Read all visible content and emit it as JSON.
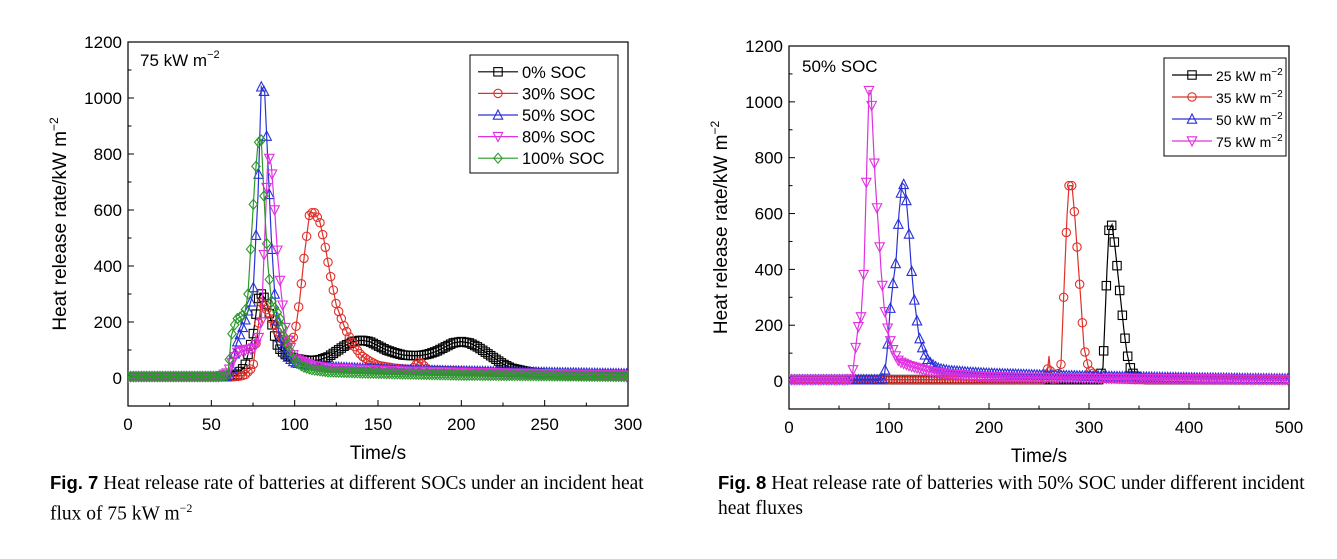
{
  "figures": [
    {
      "chart_data": {
        "type": "line",
        "annotation": "75 kW m",
        "annotation_sup": "−2",
        "xlabel": "Time/s",
        "ylabel": "Heat release rate/kW m",
        "ylabel_sup": "−2",
        "xlim": [
          0,
          300
        ],
        "ylim": [
          -100,
          1200
        ],
        "xticks": [
          0,
          50,
          100,
          150,
          200,
          250,
          300
        ],
        "yticks": [
          0,
          200,
          400,
          600,
          800,
          1000,
          1200
        ],
        "grid": false,
        "legend_position": "top-right",
        "series": [
          {
            "name": "0% SOC",
            "color": "#000000",
            "marker": "square",
            "x": [
              0,
              60,
              65,
              70,
              75,
              78,
              80,
              82,
              84,
              86,
              88,
              90,
              95,
              100,
              105,
              110,
              115,
              120,
              125,
              130,
              135,
              140,
              145,
              150,
              155,
              160,
              165,
              170,
              175,
              180,
              185,
              190,
              195,
              200,
              205,
              210,
              215,
              220,
              225,
              230,
              240,
              250,
              260,
              270,
              280,
              290,
              300
            ],
            "y": [
              5,
              5,
              10,
              40,
              150,
              280,
              300,
              285,
              250,
              200,
              150,
              110,
              80,
              70,
              65,
              62,
              65,
              75,
              95,
              115,
              130,
              135,
              130,
              115,
              100,
              90,
              82,
              80,
              80,
              85,
              95,
              110,
              125,
              130,
              125,
              110,
              90,
              70,
              50,
              35,
              22,
              15,
              12,
              10,
              10,
              10,
              10
            ]
          },
          {
            "name": "30% SOC",
            "color": "#e0302a",
            "marker": "circle",
            "x": [
              0,
              60,
              65,
              70,
              75,
              80,
              85,
              90,
              95,
              100,
              103,
              106,
              109,
              112,
              115,
              118,
              121,
              125,
              130,
              135,
              140,
              145,
              150,
              160,
              170,
              175,
              180,
              200,
              220,
              250,
              300
            ],
            "y": [
              5,
              5,
              5,
              10,
              40,
              270,
              230,
              160,
              120,
              150,
              280,
              450,
              590,
              590,
              560,
              480,
              380,
              260,
              180,
              120,
              80,
              60,
              45,
              35,
              30,
              60,
              28,
              25,
              20,
              15,
              10
            ]
          },
          {
            "name": "50% SOC",
            "color": "#2a30d8",
            "marker": "triangle-up",
            "x": [
              0,
              60,
              62,
              65,
              70,
              75,
              78,
              80,
              82,
              84,
              86,
              88,
              90,
              92,
              95,
              100,
              110,
              120,
              140,
              160,
              200,
              250,
              300
            ],
            "y": [
              5,
              5,
              20,
              120,
              200,
              300,
              650,
              1040,
              1020,
              760,
              500,
              300,
              180,
              120,
              80,
              55,
              45,
              40,
              35,
              30,
              25,
              20,
              15
            ]
          },
          {
            "name": "80% SOC",
            "color": "#e030e0",
            "marker": "triangle-down",
            "x": [
              0,
              55,
              60,
              65,
              70,
              75,
              78,
              80,
              82,
              84,
              86,
              88,
              90,
              92,
              95,
              100,
              110,
              120,
              140,
              160,
              200,
              250,
              300
            ],
            "y": [
              5,
              5,
              20,
              90,
              100,
              105,
              130,
              200,
              500,
              800,
              760,
              600,
              420,
              300,
              150,
              70,
              45,
              35,
              30,
              25,
              20,
              15,
              10
            ]
          },
          {
            "name": "100% SOC",
            "color": "#2a9a2a",
            "marker": "diamond",
            "x": [
              0,
              40,
              50,
              55,
              60,
              62,
              65,
              68,
              70,
              72,
              74,
              76,
              78,
              80,
              82,
              84,
              86,
              88,
              90,
              92,
              95,
              100,
              105,
              110,
              120,
              140,
              160,
              200,
              250,
              300
            ],
            "y": [
              5,
              5,
              5,
              5,
              10,
              150,
              210,
              220,
              230,
              300,
              500,
              700,
              840,
              850,
              600,
              400,
              280,
              250,
              230,
              200,
              130,
              60,
              40,
              30,
              22,
              18,
              15,
              10,
              8,
              5
            ]
          }
        ]
      },
      "caption": {
        "label": "Fig. 7",
        "text": " Heat release rate of batteries at different SOCs under an incident heat flux of 75 kW m",
        "sup": "−2"
      }
    },
    {
      "chart_data": {
        "type": "line",
        "annotation": "50% SOC",
        "xlabel": "Time/s",
        "ylabel": "Heat release rate/kW m",
        "ylabel_sup": "−2",
        "xlim": [
          0,
          500
        ],
        "ylim": [
          -100,
          1200
        ],
        "xticks": [
          0,
          100,
          200,
          300,
          400,
          500
        ],
        "yticks": [
          0,
          200,
          400,
          600,
          800,
          1000,
          1200
        ],
        "grid": false,
        "legend_position": "top-right",
        "series": [
          {
            "name": "25 kW m",
            "sup": "−2",
            "color": "#000000",
            "marker": "square",
            "x": [
              0,
              200,
              250,
              300,
              310,
              314,
              318,
              320,
              323,
              326,
              329,
              332,
              335,
              338,
              341,
              345,
              350,
              360,
              400,
              450,
              500
            ],
            "y": [
              5,
              5,
              5,
              5,
              5,
              50,
              400,
              540,
              560,
              480,
              380,
              280,
              180,
              100,
              50,
              20,
              10,
              5,
              5,
              5,
              5
            ]
          },
          {
            "name": "35 kW m",
            "sup": "−2",
            "color": "#e0302a",
            "marker": "circle",
            "x": [
              0,
              100,
              150,
              200,
              240,
              255,
              258,
              260,
              262,
              265,
              268,
              272,
              275,
              278,
              280,
              283,
              286,
              289,
              292,
              295,
              300,
              310,
              350,
              400,
              450,
              500
            ],
            "y": [
              5,
              5,
              5,
              5,
              5,
              5,
              20,
              90,
              10,
              5,
              10,
              60,
              330,
              590,
              700,
              700,
              580,
              430,
              280,
              120,
              40,
              10,
              5,
              5,
              5,
              5
            ]
          },
          {
            "name": "50 kW m",
            "sup": "−2",
            "color": "#2a30d8",
            "marker": "triangle-up",
            "x": [
              0,
              90,
              95,
              98,
              101,
              104,
              107,
              110,
              113,
              116,
              119,
              122,
              125,
              130,
              135,
              140,
              145,
              150,
              160,
              180,
              200,
              250,
              300,
              350,
              400,
              450,
              500
            ],
            "y": [
              5,
              5,
              10,
              100,
              250,
              350,
              430,
              600,
              710,
              700,
              580,
              420,
              300,
              160,
              100,
              70,
              55,
              45,
              38,
              32,
              28,
              22,
              18,
              15,
              12,
              10,
              8
            ]
          },
          {
            "name": "75 kW m",
            "sup": "−2",
            "color": "#e030e0",
            "marker": "triangle-down",
            "x": [
              0,
              60,
              63,
              66,
              69,
              72,
              75,
              78,
              80,
              82,
              84,
              86,
              88,
              90,
              92,
              95,
              100,
              105,
              110,
              120,
              130,
              140,
              160,
              200,
              300,
              400,
              500
            ],
            "y": [
              5,
              5,
              10,
              100,
              190,
              230,
              400,
              800,
              1040,
              1040,
              880,
              730,
              620,
              520,
              400,
              270,
              160,
              100,
              70,
              55,
              45,
              35,
              25,
              15,
              10,
              8,
              5
            ]
          }
        ]
      },
      "caption": {
        "label": "Fig. 8",
        "text": " Heat release rate of batteries with 50% SOC under different incident heat fluxes"
      }
    }
  ]
}
